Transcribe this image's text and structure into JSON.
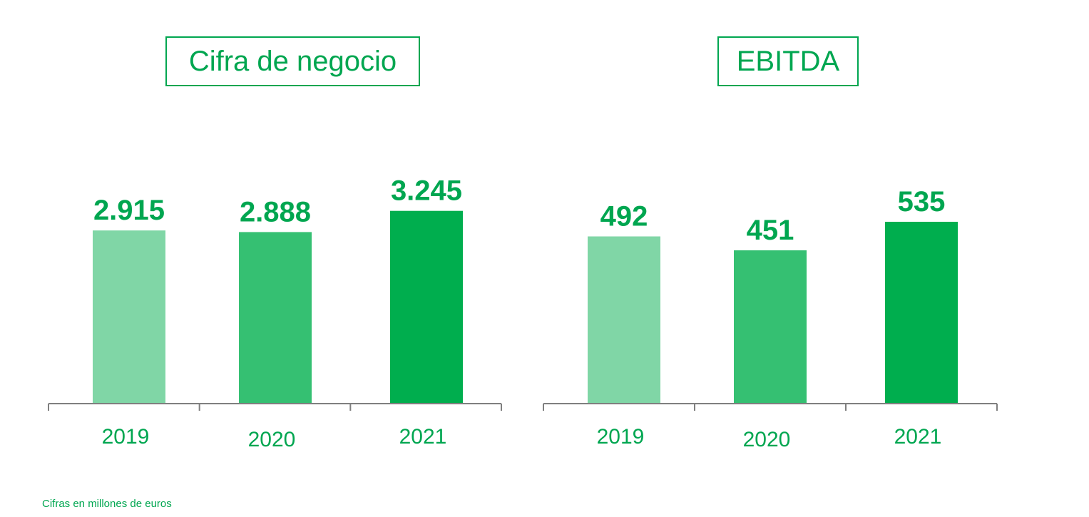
{
  "colors": {
    "accent": "#00a650",
    "bar_2019": "#80d6a6",
    "bar_2020": "#35c072",
    "bar_2021": "#00ae4e",
    "axis": "#7f7f7f"
  },
  "chart_data": [
    {
      "type": "bar",
      "title": "Cifra de negocio",
      "categories": [
        "2019",
        "2020",
        "2021"
      ],
      "values": [
        2915,
        2888,
        3245
      ],
      "value_labels": [
        "2.915",
        "2.888",
        "3.245"
      ],
      "grid": false
    },
    {
      "type": "bar",
      "title": "EBITDA",
      "categories": [
        "2019",
        "2020",
        "2021"
      ],
      "values": [
        492,
        451,
        535
      ],
      "value_labels": [
        "492",
        "451",
        "535"
      ],
      "grid": false
    }
  ],
  "footnote": "Cifras en millones de euros"
}
